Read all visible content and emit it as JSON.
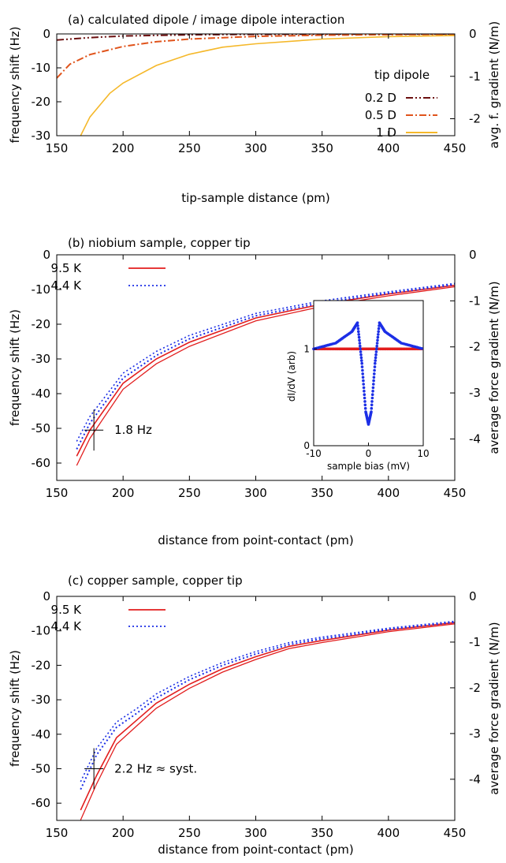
{
  "chart_data": [
    {
      "type": "line",
      "title": "(a)  calculated dipole / image dipole interaction",
      "xlabel": "tip-sample distance  (pm)",
      "ylabel": "frequency shift  (Hz)",
      "y2label": "avg. f. gradient  (N/m)",
      "xlim": [
        150,
        450
      ],
      "ylim": [
        -30,
        0
      ],
      "y2lim": [
        -2.4,
        0
      ],
      "xticks": [
        "150",
        "200",
        "250",
        "300",
        "350",
        "400",
        "450"
      ],
      "yticks": [
        "0",
        "-10",
        "-20",
        "-30"
      ],
      "y2ticks": [
        "0",
        "-1",
        "-2"
      ],
      "legend_title": "tip dipole",
      "legend_position": "right",
      "grid": false,
      "series": [
        {
          "name": "0.2 D",
          "color": "#6b0f0f",
          "dash": "dashdotdot",
          "x": [
            150,
            175,
            200,
            250,
            300,
            350,
            400,
            450
          ],
          "y": [
            -1.8,
            -1.1,
            -0.6,
            -0.25,
            -0.12,
            -0.07,
            -0.04,
            -0.03
          ]
        },
        {
          "name": "0.5 D",
          "color": "#e0541c",
          "dash": "dashdot",
          "x": [
            150,
            160,
            175,
            200,
            225,
            250,
            300,
            350,
            400,
            450
          ],
          "y": [
            -13,
            -8.9,
            -6.1,
            -3.7,
            -2.3,
            -1.5,
            -0.72,
            -0.38,
            -0.2,
            -0.12
          ]
        },
        {
          "name": "1 D",
          "color": "#f5b82a",
          "dash": "solid",
          "x": [
            168,
            175,
            190,
            200,
            225,
            250,
            275,
            300,
            350,
            400,
            450
          ],
          "y": [
            -30,
            -24.5,
            -17.5,
            -14.5,
            -9.3,
            -6,
            -3.9,
            -2.9,
            -1.5,
            -0.8,
            -0.48
          ]
        }
      ]
    },
    {
      "type": "line",
      "title": "(b)  niobium sample, copper tip",
      "xlabel": "distance from point-contact  (pm)",
      "ylabel": "frequency shift  (Hz)",
      "y2label": "average force gradient  (N/m)",
      "xlim": [
        150,
        450
      ],
      "ylim": [
        -65,
        0
      ],
      "y2lim": [
        -4.9,
        0
      ],
      "xticks": [
        "150",
        "200",
        "250",
        "300",
        "350",
        "400",
        "450"
      ],
      "yticks": [
        "0",
        "-10",
        "-20",
        "-30",
        "-40",
        "-50",
        "-60"
      ],
      "y2ticks": [
        "0",
        "-1",
        "-2",
        "-3",
        "-4"
      ],
      "legend_position": "top-left",
      "grid": false,
      "annotation": "1.8 Hz",
      "series": [
        {
          "name": "9.5 K",
          "color": "#e21d1d",
          "dash": "solid",
          "x": [
            165,
            175,
            200,
            225,
            250,
            300,
            350,
            400,
            450
          ],
          "y": [
            -58,
            -50.5,
            -37,
            -30,
            -25.2,
            -18.2,
            -14.2,
            -11.3,
            -8.8
          ]
        },
        {
          "name": "4.4 K",
          "color": "#1c2fe6",
          "dash": "dotted",
          "x": [
            165,
            175,
            200,
            225,
            250,
            300,
            350,
            400,
            450
          ],
          "y": [
            -56,
            -48.5,
            -35.5,
            -29,
            -24.2,
            -17.6,
            -13.8,
            -11.1,
            -8.6
          ]
        }
      ],
      "inset": {
        "type": "scatter",
        "xlabel": "sample bias  (mV)",
        "ylabel": "dI/dV  (arb)",
        "xlim": [
          -10,
          10
        ],
        "ylim": [
          0,
          1.5
        ],
        "xticks": [
          "-10",
          "0",
          "10"
        ],
        "yticks": [
          "0",
          "1"
        ],
        "series": [
          {
            "name": "9.5 K",
            "color": "#e21d1d",
            "x": [
              -10,
              -6,
              -3,
              0,
              3,
              6,
              10
            ],
            "y": [
              1.0,
              1.0,
              1.0,
              1.0,
              1.0,
              1.0,
              1.0
            ]
          },
          {
            "name": "4.4 K",
            "color": "#1c2fe6",
            "x": [
              -10,
              -6,
              -3,
              -2,
              -1.2,
              -0.5,
              0,
              0.5,
              1.2,
              2,
              3,
              6,
              10
            ],
            "y": [
              1.0,
              1.06,
              1.18,
              1.27,
              0.85,
              0.35,
              0.22,
              0.35,
              0.85,
              1.27,
              1.18,
              1.06,
              1.0
            ]
          }
        ]
      }
    },
    {
      "type": "line",
      "title": "(c)  copper sample, copper tip",
      "xlabel": "distance from point-contact  (pm)",
      "ylabel": "frequency shift  (Hz)",
      "y2label": "average force gradient  (N/m)",
      "xlim": [
        150,
        450
      ],
      "ylim": [
        -65,
        0
      ],
      "y2lim": [
        -4.9,
        0
      ],
      "xticks": [
        "150",
        "200",
        "250",
        "300",
        "350",
        "400",
        "450"
      ],
      "yticks": [
        "0",
        "-10",
        "-20",
        "-30",
        "-40",
        "-50",
        "-60"
      ],
      "y2ticks": [
        "0",
        "-1",
        "-2",
        "-3",
        "-4"
      ],
      "legend_position": "top-left",
      "grid": false,
      "annotation": "2.2 Hz ≈ syst.",
      "series": [
        {
          "name": "9.5 K",
          "color": "#e21d1d",
          "dash": "solid",
          "x": [
            168,
            180,
            195,
            210,
            225,
            250,
            275,
            300,
            325,
            350,
            375,
            400,
            450
          ],
          "y": [
            -62,
            -52,
            -41,
            -36,
            -31,
            -25.5,
            -21,
            -17.5,
            -14.5,
            -12.8,
            -11.3,
            -9.8,
            -7.6
          ]
        },
        {
          "name": "4.4 K",
          "color": "#1c2fe6",
          "dash": "dotted",
          "x": [
            168,
            180,
            195,
            210,
            225,
            250,
            275,
            300,
            325,
            350,
            375,
            400,
            450
          ],
          "y": [
            -56,
            -46,
            -38,
            -34,
            -29.5,
            -24.2,
            -20,
            -16.7,
            -14,
            -12.3,
            -11,
            -9.6,
            -7.5
          ]
        }
      ]
    }
  ]
}
